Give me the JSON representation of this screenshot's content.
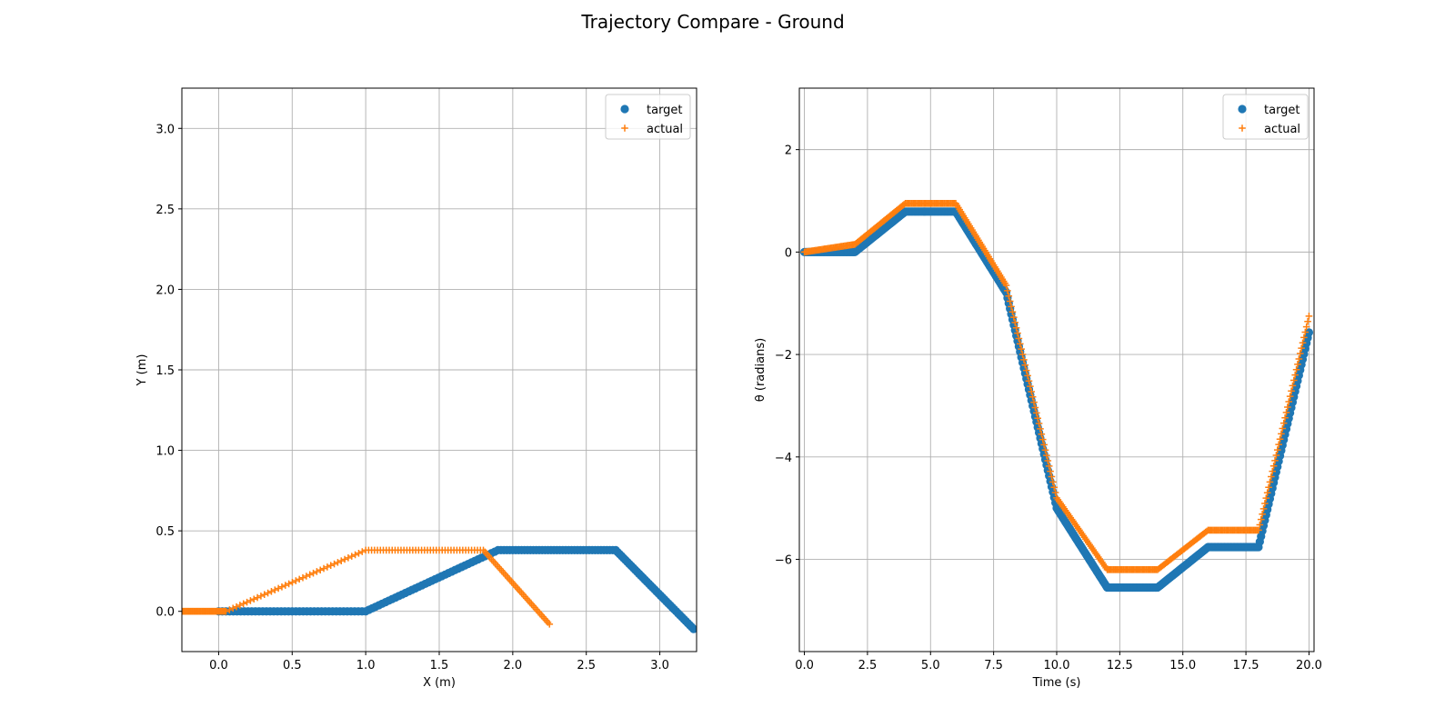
{
  "figure": {
    "suptitle": "Trajectory Compare - Ground"
  },
  "colors": {
    "target": "#1f77b4",
    "actual": "#ff7f0e",
    "grid": "#b0b0b0"
  },
  "chart_data": [
    {
      "type": "scatter",
      "title": "",
      "xlabel": "X (m)",
      "ylabel": "Y (m)",
      "xlim": [
        -0.25,
        3.25
      ],
      "ylim": [
        -0.25,
        3.25
      ],
      "xticks": [
        0.0,
        0.5,
        1.0,
        1.5,
        2.0,
        2.5,
        3.0
      ],
      "yticks": [
        0.0,
        0.5,
        1.0,
        1.5,
        2.0,
        2.5,
        3.0
      ],
      "xtick_labels": [
        "0.0",
        "0.5",
        "1.0",
        "1.5",
        "2.0",
        "2.5",
        "3.0"
      ],
      "ytick_labels": [
        "0.0",
        "0.5",
        "1.0",
        "1.5",
        "2.0",
        "2.5",
        "3.0"
      ],
      "grid": true,
      "legend": "upper-right",
      "series": [
        {
          "name": "target",
          "marker": "circle",
          "x": [
            0.0,
            1.0,
            1.9,
            2.7,
            3.23
          ],
          "y": [
            0.0,
            0.0,
            0.38,
            0.38,
            -0.11
          ]
        },
        {
          "name": "actual",
          "marker": "plus",
          "x": [
            -0.25,
            0.05,
            1.0,
            1.8,
            2.25
          ],
          "y": [
            0.0,
            0.0,
            0.38,
            0.38,
            -0.08
          ]
        }
      ]
    },
    {
      "type": "scatter",
      "title": "",
      "xlabel": "Time (s)",
      "ylabel": "θ (radians)",
      "xlim": [
        -0.2,
        20.2
      ],
      "ylim": [
        -7.8,
        3.2
      ],
      "xticks": [
        0.0,
        2.5,
        5.0,
        7.5,
        10.0,
        12.5,
        15.0,
        17.5,
        20.0
      ],
      "yticks": [
        2,
        0,
        -2,
        -4,
        -6
      ],
      "xtick_labels": [
        "0.0",
        "2.5",
        "5.0",
        "7.5",
        "10.0",
        "12.5",
        "15.0",
        "17.5",
        "20.0"
      ],
      "ytick_labels": [
        "2",
        "0",
        "−2",
        "−4",
        "−6"
      ],
      "grid": true,
      "legend": "upper-right",
      "series": [
        {
          "name": "target",
          "marker": "circle",
          "x": [
            0.0,
            2.0,
            4.0,
            6.0,
            8.0,
            10.0,
            12.0,
            14.0,
            16.0,
            18.0,
            20.0
          ],
          "y": [
            0.0,
            0.0,
            0.79,
            0.79,
            -0.79,
            -5.0,
            -6.55,
            -6.55,
            -5.76,
            -5.76,
            -1.57
          ]
        },
        {
          "name": "actual",
          "marker": "plus",
          "x": [
            0.0,
            2.0,
            4.0,
            6.0,
            8.0,
            10.0,
            12.0,
            14.0,
            16.0,
            18.0,
            20.0
          ],
          "y": [
            0.0,
            0.15,
            0.95,
            0.95,
            -0.65,
            -4.8,
            -6.2,
            -6.2,
            -5.43,
            -5.43,
            -1.25
          ]
        }
      ]
    }
  ]
}
